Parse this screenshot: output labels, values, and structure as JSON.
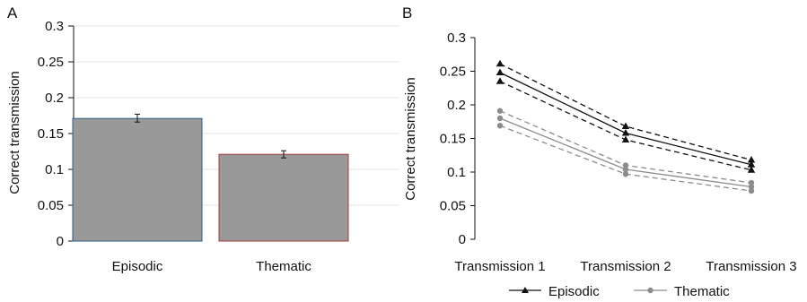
{
  "panels": {
    "a": {
      "label": "A"
    },
    "b": {
      "label": "B"
    }
  },
  "colors": {
    "bar_fill": "#999999",
    "episodic_bar_edge": "#2e5b87",
    "thematic_bar_edge": "#a33a3a",
    "episodic_line": "#111111",
    "thematic_line": "#8c8c8c",
    "grid": "#e6e6e6"
  },
  "chart_data": [
    {
      "type": "bar",
      "panel": "A",
      "title": "",
      "xlabel": "",
      "ylabel": "Correct transmission",
      "categories": [
        "Episodic",
        "Thematic"
      ],
      "values": [
        0.171,
        0.121
      ],
      "error_bars": [
        [
          0.166,
          0.177
        ],
        [
          0.116,
          0.126
        ]
      ],
      "ylim": [
        0,
        0.3
      ],
      "yticks": [
        "0",
        "0.05",
        "0.1",
        "0.15",
        "0.2",
        "0.25",
        "0.3"
      ],
      "grid": true
    },
    {
      "type": "line",
      "panel": "B",
      "title": "",
      "xlabel": "",
      "ylabel": "Correct transmission",
      "categories": [
        "Transmission 1",
        "Transmission 2",
        "Transmission 3"
      ],
      "ylim": [
        0,
        0.3
      ],
      "yticks": [
        "0",
        "0.05",
        "0.1",
        "0.15",
        "0.2",
        "0.25",
        "0.3"
      ],
      "grid": false,
      "legend_position": "bottom",
      "series": [
        {
          "name": "Episodic",
          "marker": "triangle",
          "values": [
            0.248,
            0.158,
            0.111
          ],
          "ci_upper": [
            0.261,
            0.168,
            0.118
          ],
          "ci_lower": [
            0.235,
            0.148,
            0.103
          ]
        },
        {
          "name": "Thematic",
          "marker": "circle",
          "values": [
            0.18,
            0.104,
            0.078
          ],
          "ci_upper": [
            0.191,
            0.11,
            0.084
          ],
          "ci_lower": [
            0.169,
            0.097,
            0.072
          ]
        }
      ]
    }
  ]
}
